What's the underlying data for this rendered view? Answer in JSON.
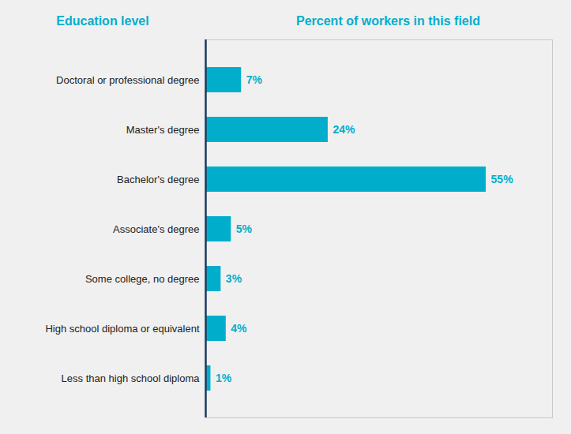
{
  "chart_data": {
    "type": "bar",
    "orientation": "horizontal",
    "ylabel": "Education level",
    "xlabel": "Percent of workers in this field",
    "categories": [
      "Doctoral or professional degree",
      "Master's degree",
      "Bachelor's degree",
      "Associate's degree",
      "Some college, no degree",
      "High school diploma or equivalent",
      "Less than high school diploma"
    ],
    "values": [
      7,
      24,
      55,
      5,
      3,
      4,
      1
    ],
    "value_labels": [
      "7%",
      "24%",
      "55%",
      "5%",
      "3%",
      "4%",
      "1%"
    ],
    "data_labels": true,
    "color": "#00AECC",
    "xlim": [
      0,
      68
    ],
    "tick_labels": "y"
  }
}
